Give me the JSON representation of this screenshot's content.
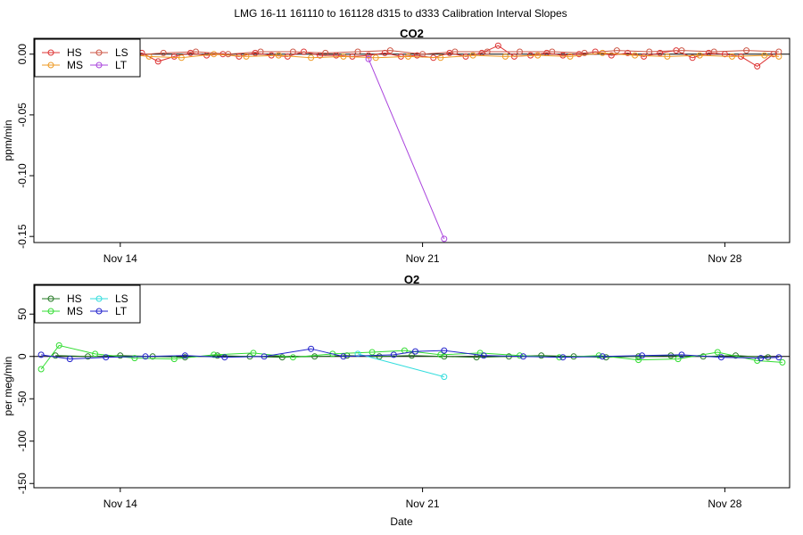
{
  "title": "LMG   16-11    161110 to 161128    d315 to d333   Calibration Interval Slopes",
  "xlabel": "Date",
  "x_ticks": [
    "Nov 14",
    "Nov 21",
    "Nov 28"
  ],
  "chart_data": [
    {
      "type": "scatter",
      "title": "CO2",
      "ylabel": "ppm/min",
      "xlim": [
        "2016-11-12 00:00",
        "2016-11-29 12:00"
      ],
      "ylim": [
        -0.155,
        0.013
      ],
      "y_ticks": [
        "0.00",
        "-0.05",
        "-0.10",
        "-0.15"
      ],
      "y_tick_values": [
        0,
        -0.05,
        -0.1,
        -0.15
      ],
      "reference_line": 0,
      "legend": "top-left",
      "series": [
        {
          "name": "HS",
          "color": "#dd3333",
          "x": [
            "2016-11-12 06:00",
            "2016-11-12 15:00",
            "2016-11-13 00:00",
            "2016-11-13 09:00",
            "2016-11-13 18:00",
            "2016-11-14 03:00",
            "2016-11-14 12:00",
            "2016-11-14 21:00",
            "2016-11-15 06:00",
            "2016-11-15 15:00",
            "2016-11-16 00:00",
            "2016-11-16 09:00",
            "2016-11-16 18:00",
            "2016-11-17 03:00",
            "2016-11-17 12:00",
            "2016-11-17 21:00",
            "2016-11-18 06:00",
            "2016-11-18 15:00",
            "2016-11-19 00:00",
            "2016-11-19 09:00",
            "2016-11-19 18:00",
            "2016-11-20 03:00",
            "2016-11-20 12:00",
            "2016-11-20 21:00",
            "2016-11-21 06:00",
            "2016-11-21 15:00",
            "2016-11-22 00:00",
            "2016-11-22 09:00",
            "2016-11-22 18:00",
            "2016-11-23 03:00",
            "2016-11-23 12:00",
            "2016-11-23 21:00",
            "2016-11-24 06:00",
            "2016-11-24 15:00",
            "2016-11-25 00:00",
            "2016-11-25 09:00",
            "2016-11-25 18:00",
            "2016-11-26 03:00",
            "2016-11-26 12:00",
            "2016-11-26 21:00",
            "2016-11-27 06:00",
            "2016-11-27 15:00",
            "2016-11-28 00:00",
            "2016-11-28 09:00",
            "2016-11-28 18:00",
            "2016-11-29 03:00"
          ],
          "values": [
            -0.001,
            0.001,
            -0.002,
            0.0,
            -0.001,
            -0.002,
            0.001,
            -0.006,
            -0.002,
            0.001,
            -0.001,
            0.0,
            -0.002,
            0.001,
            -0.001,
            -0.002,
            0.002,
            -0.001,
            -0.001,
            -0.002,
            -0.001,
            0.001,
            -0.002,
            -0.001,
            -0.003,
            0.001,
            -0.002,
            0.001,
            0.007,
            -0.002,
            -0.001,
            0.001,
            -0.001,
            0.0,
            0.002,
            -0.001,
            0.001,
            -0.002,
            0.001,
            0.003,
            -0.003,
            0.001,
            0.0,
            -0.002,
            -0.01,
            0.0
          ]
        },
        {
          "name": "MS",
          "color": "#ee9922",
          "x": [
            "2016-11-12 10:00",
            "2016-11-13 04:00",
            "2016-11-13 22:00",
            "2016-11-14 16:00",
            "2016-11-15 10:00",
            "2016-11-16 04:00",
            "2016-11-16 22:00",
            "2016-11-17 16:00",
            "2016-11-18 10:00",
            "2016-11-19 04:00",
            "2016-11-19 22:00",
            "2016-11-20 16:00",
            "2016-11-21 10:00",
            "2016-11-22 04:00",
            "2016-11-22 22:00",
            "2016-11-23 16:00",
            "2016-11-24 10:00",
            "2016-11-25 04:00",
            "2016-11-25 22:00",
            "2016-11-26 16:00",
            "2016-11-27 10:00",
            "2016-11-28 04:00",
            "2016-11-28 22:00",
            "2016-11-29 06:00"
          ],
          "values": [
            0.002,
            -0.001,
            0.001,
            -0.002,
            -0.003,
            0.0,
            -0.002,
            -0.001,
            -0.003,
            -0.002,
            -0.003,
            -0.002,
            -0.003,
            -0.001,
            -0.002,
            -0.001,
            -0.002,
            0.001,
            -0.001,
            -0.002,
            -0.001,
            -0.002,
            -0.001,
            -0.002
          ]
        },
        {
          "name": "LS",
          "color": "#cc5544",
          "x": [
            "2016-11-12 18:00",
            "2016-11-13 12:00",
            "2016-11-14 06:00",
            "2016-11-15 00:00",
            "2016-11-15 18:00",
            "2016-11-16 12:00",
            "2016-11-17 06:00",
            "2016-11-18 00:00",
            "2016-11-18 18:00",
            "2016-11-19 12:00",
            "2016-11-20 06:00",
            "2016-11-21 00:00",
            "2016-11-21 18:00",
            "2016-11-22 12:00",
            "2016-11-23 06:00",
            "2016-11-24 00:00",
            "2016-11-24 18:00",
            "2016-11-25 12:00",
            "2016-11-26 06:00",
            "2016-11-27 00:00",
            "2016-11-27 18:00",
            "2016-11-28 12:00",
            "2016-11-29 06:00"
          ],
          "values": [
            0.001,
            0.0,
            -0.001,
            0.001,
            0.002,
            0.0,
            0.002,
            0.002,
            0.001,
            0.002,
            0.003,
            0.0,
            0.002,
            0.002,
            0.002,
            0.002,
            0.001,
            0.003,
            0.002,
            0.003,
            0.002,
            0.003,
            0.002
          ]
        },
        {
          "name": "LT",
          "color": "#aa44dd",
          "x": [
            "2016-11-19 18:00",
            "2016-11-21 12:00"
          ],
          "values": [
            -0.004,
            -0.152
          ]
        }
      ]
    },
    {
      "type": "scatter",
      "title": "O2",
      "ylabel": "per meg/min",
      "xlim": [
        "2016-11-12 00:00",
        "2016-11-29 12:00"
      ],
      "ylim": [
        -155,
        85
      ],
      "y_ticks": [
        "50",
        "0",
        "-50",
        "-100",
        "-150"
      ],
      "y_tick_values": [
        50,
        0,
        -50,
        -100,
        -150
      ],
      "reference_line": 0,
      "legend": "top-left",
      "series": [
        {
          "name": "HS",
          "color": "#227722",
          "x": [
            "2016-11-12 12:00",
            "2016-11-13 06:00",
            "2016-11-14 00:00",
            "2016-11-14 18:00",
            "2016-11-15 12:00",
            "2016-11-16 06:00",
            "2016-11-17 00:00",
            "2016-11-17 18:00",
            "2016-11-18 12:00",
            "2016-11-19 06:00",
            "2016-11-20 00:00",
            "2016-11-20 18:00",
            "2016-11-21 12:00",
            "2016-11-22 06:00",
            "2016-11-23 00:00",
            "2016-11-23 18:00",
            "2016-11-24 12:00",
            "2016-11-25 06:00",
            "2016-11-26 00:00",
            "2016-11-26 18:00",
            "2016-11-27 12:00",
            "2016-11-28 06:00",
            "2016-11-29 00:00"
          ],
          "values": [
            1,
            0,
            1,
            0,
            -1,
            1,
            0,
            -1,
            0,
            1,
            0,
            1,
            0,
            -1,
            0,
            1,
            0,
            -1,
            0,
            1,
            0,
            1,
            -1
          ]
        },
        {
          "name": "MS",
          "color": "#33dd33",
          "x": [
            "2016-11-12 04:00",
            "2016-11-12 14:00",
            "2016-11-13 10:00",
            "2016-11-14 08:00",
            "2016-11-15 06:00",
            "2016-11-16 04:00",
            "2016-11-17 02:00",
            "2016-11-18 00:00",
            "2016-11-18 22:00",
            "2016-11-19 20:00",
            "2016-11-20 14:00",
            "2016-11-21 10:00",
            "2016-11-22 08:00",
            "2016-11-23 06:00",
            "2016-11-24 04:00",
            "2016-11-25 02:00",
            "2016-11-26 00:00",
            "2016-11-26 22:00",
            "2016-11-27 20:00",
            "2016-11-28 18:00",
            "2016-11-29 08:00"
          ],
          "values": [
            -15,
            13,
            3,
            -2,
            -3,
            2,
            4,
            -1,
            3,
            5,
            7,
            2,
            4,
            1,
            -1,
            1,
            -4,
            -3,
            5,
            -5,
            -7
          ]
        },
        {
          "name": "LS",
          "color": "#33dddd",
          "x": [
            "2016-11-19 12:00",
            "2016-11-21 12:00"
          ],
          "values": [
            3,
            -24
          ]
        },
        {
          "name": "LT",
          "color": "#2222cc",
          "x": [
            "2016-11-12 04:00",
            "2016-11-12 20:00",
            "2016-11-13 16:00",
            "2016-11-14 14:00",
            "2016-11-15 12:00",
            "2016-11-16 10:00",
            "2016-11-17 08:00",
            "2016-11-18 10:00",
            "2016-11-19 04:00",
            "2016-11-20 08:00",
            "2016-11-20 20:00",
            "2016-11-21 12:00",
            "2016-11-22 10:00",
            "2016-11-23 08:00",
            "2016-11-24 06:00",
            "2016-11-25 04:00",
            "2016-11-26 02:00",
            "2016-11-27 00:00",
            "2016-11-27 22:00",
            "2016-11-28 20:00",
            "2016-11-29 06:00"
          ],
          "values": [
            2,
            -3,
            -1,
            0,
            1,
            -1,
            0,
            9,
            0,
            2,
            6,
            7,
            1,
            0,
            -1,
            0,
            1,
            2,
            -1,
            -2,
            -1
          ]
        }
      ]
    }
  ]
}
